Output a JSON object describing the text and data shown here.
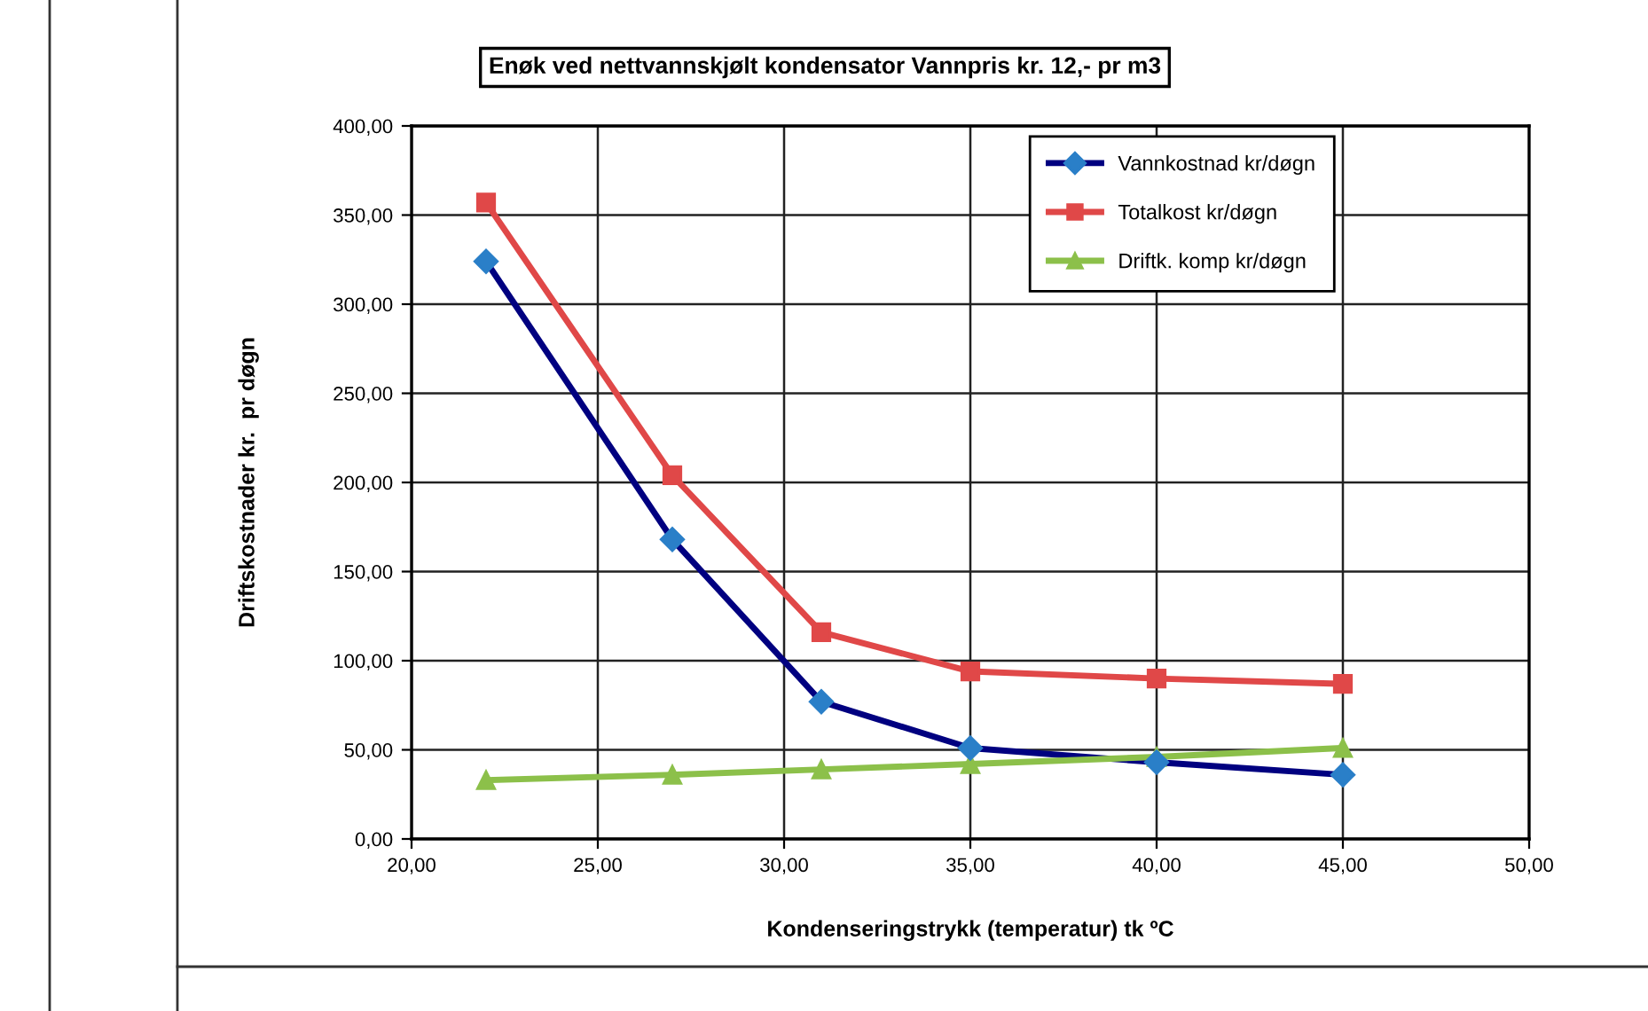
{
  "chart_data": {
    "type": "line",
    "title": "Enøk ved nettvannskjølt kondensator Vannpris kr. 12,- pr m3",
    "xlabel": "Kondenseringstrykk (temperatur) tk ºC",
    "ylabel": "Driftskostnader kr.  pr døgn",
    "x": [
      22,
      27,
      31,
      35,
      40,
      45
    ],
    "series": [
      {
        "name": "Vannkostnad kr/døgn",
        "color": "#000080",
        "marker": "diamond",
        "values": [
          324,
          168,
          77,
          51,
          43,
          36
        ]
      },
      {
        "name": "Totalkost kr/døgn",
        "color": "#e04848",
        "marker": "square",
        "values": [
          357,
          204,
          116,
          94,
          90,
          87
        ]
      },
      {
        "name": "Driftk. komp kr/døgn",
        "color": "#8cc04a",
        "marker": "triangle",
        "values": [
          33,
          36,
          39,
          42,
          46,
          51
        ]
      }
    ],
    "xlim": [
      20,
      50
    ],
    "xticks": [
      {
        "value": 20,
        "label": "20,00"
      },
      {
        "value": 25,
        "label": "25,00"
      },
      {
        "value": 30,
        "label": "30,00"
      },
      {
        "value": 35,
        "label": "35,00"
      },
      {
        "value": 40,
        "label": "40,00"
      },
      {
        "value": 45,
        "label": "45,00"
      },
      {
        "value": 50,
        "label": "50,00"
      }
    ],
    "ylim": [
      0,
      400
    ],
    "yticks": [
      {
        "value": 0,
        "label": "0,00"
      },
      {
        "value": 50,
        "label": "50,00"
      },
      {
        "value": 100,
        "label": "100,00"
      },
      {
        "value": 150,
        "label": "150,00"
      },
      {
        "value": 200,
        "label": "200,00"
      },
      {
        "value": 250,
        "label": "250,00"
      },
      {
        "value": 300,
        "label": "300,00"
      },
      {
        "value": 350,
        "label": "350,00"
      },
      {
        "value": 400,
        "label": "400,00"
      }
    ],
    "grid": true,
    "legend": "top right",
    "line_style": "solid"
  }
}
